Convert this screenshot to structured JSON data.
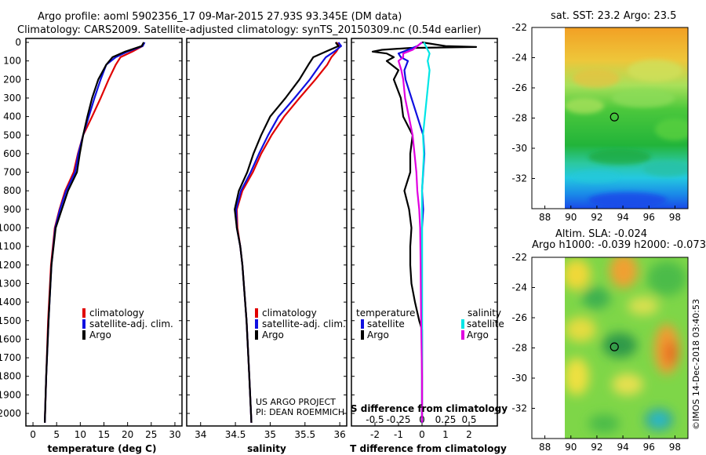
{
  "header": {
    "line1": "Argo profile: aoml 5902356_17 09-Mar-2015 27.93S 93.345E (DM data)",
    "line2": "Climatology: CARS2009. Satellite-adjusted climatology: synTS_20150309.nc (0.54d earlier)"
  },
  "credit": {
    "project": "US ARGO PROJECT",
    "pi": "PI: DEAN ROEMMICH",
    "imos": "©IMOS 14-Dec-2018 03:40:53"
  },
  "colors": {
    "climatology": "#e00000",
    "satellite": "#1010e0",
    "argo": "#000000",
    "sal_satellite": "#00e6e6",
    "sal_climatology": "#e000e0"
  },
  "legend": {
    "climatology": "climatology",
    "satellite_adj": "satellite-adj. clim.",
    "argo": "Argo",
    "temperature": "temperature",
    "salinity": "salinity",
    "satellite": "satellite"
  },
  "chart_data": [
    {
      "type": "line",
      "id": "temperature",
      "xlabel": "temperature (deg C)",
      "xlim": [
        -1.5,
        31.5
      ],
      "xticks": [
        0,
        5,
        10,
        15,
        20,
        25,
        30
      ],
      "ylim": [
        0,
        2050
      ],
      "yticks": [
        0,
        100,
        200,
        300,
        400,
        500,
        600,
        700,
        800,
        900,
        1000,
        1100,
        1200,
        1300,
        1400,
        1500,
        1600,
        1700,
        1800,
        1900,
        2000
      ],
      "series": [
        {
          "name": "climatology",
          "depth": [
            0,
            20,
            50,
            80,
            120,
            200,
            300,
            400,
            500,
            600,
            700,
            800,
            900,
            1000,
            1200,
            1500,
            1800,
            2050
          ],
          "values": [
            23.4,
            23.2,
            21,
            18.5,
            17.5,
            16,
            14.3,
            12.5,
            10.6,
            9.5,
            8.6,
            6.8,
            5.6,
            4.6,
            3.8,
            3.2,
            2.8,
            2.5
          ]
        },
        {
          "name": "satellite-adj. clim.",
          "depth": [
            0,
            20,
            50,
            80,
            120,
            200,
            300,
            400,
            500,
            600,
            700,
            800,
            900,
            1000,
            1200,
            1500,
            1800,
            2050
          ],
          "values": [
            23.6,
            23.2,
            20,
            17.5,
            15.5,
            14.3,
            13,
            11.8,
            10.6,
            9.6,
            8.9,
            7,
            5.7,
            4.7,
            3.9,
            3.3,
            2.8,
            2.5
          ]
        },
        {
          "name": "Argo",
          "depth": [
            0,
            20,
            50,
            80,
            120,
            200,
            300,
            400,
            500,
            600,
            700,
            800,
            900,
            1000,
            1200,
            1500,
            1800,
            2050
          ],
          "values": [
            23.4,
            23,
            19.5,
            16.8,
            15.5,
            13.8,
            12.5,
            11.5,
            10.6,
            9.9,
            9.3,
            7.4,
            6.1,
            4.8,
            3.9,
            3.3,
            2.8,
            2.5
          ]
        }
      ]
    },
    {
      "type": "line",
      "id": "salinity",
      "xlabel": "salinity",
      "xlim": [
        33.8,
        36.1
      ],
      "xticks": [
        34,
        34.5,
        35,
        35.5,
        36
      ],
      "xticklabels": [
        "34",
        "34.5",
        "35",
        "35.5",
        "36"
      ],
      "ylim": [
        0,
        2050
      ],
      "series": [
        {
          "name": "climatology",
          "depth": [
            0,
            20,
            50,
            80,
            120,
            200,
            300,
            400,
            500,
            600,
            700,
            800,
            900,
            1000,
            1100,
            1200,
            1500,
            1800,
            2050
          ],
          "values": [
            35.95,
            36.0,
            35.95,
            35.88,
            35.82,
            35.65,
            35.42,
            35.2,
            35.02,
            34.87,
            34.75,
            34.6,
            34.52,
            34.53,
            34.57,
            34.6,
            34.66,
            34.7,
            34.73
          ]
        },
        {
          "name": "satellite-adj. clim.",
          "depth": [
            0,
            20,
            50,
            80,
            120,
            200,
            300,
            400,
            500,
            600,
            700,
            800,
            900,
            1000,
            1100,
            1200,
            1500,
            1800,
            2050
          ],
          "values": [
            35.98,
            36.02,
            35.92,
            35.8,
            35.72,
            35.57,
            35.35,
            35.12,
            34.97,
            34.84,
            34.72,
            34.58,
            34.51,
            34.52,
            34.57,
            34.6,
            34.66,
            34.7,
            34.73
          ]
        },
        {
          "name": "Argo",
          "depth": [
            0,
            20,
            50,
            80,
            120,
            200,
            300,
            400,
            500,
            600,
            700,
            800,
            900,
            1000,
            1100,
            1200,
            1500,
            1800,
            2050
          ],
          "values": [
            35.94,
            35.98,
            35.8,
            35.62,
            35.55,
            35.42,
            35.22,
            35.0,
            34.87,
            34.76,
            34.67,
            34.55,
            34.49,
            34.52,
            34.57,
            34.6,
            34.66,
            34.7,
            34.73
          ]
        }
      ]
    },
    {
      "type": "line",
      "id": "difference",
      "xlabel": "T difference from climatology",
      "xlabel_top": "S difference from climatology",
      "xlim": [
        -3,
        3.2
      ],
      "xticks": [
        -2,
        -1,
        0,
        1,
        2
      ],
      "s_xticks": [
        -0.5,
        -0.25,
        0,
        0.25,
        0.5
      ],
      "s_xticklabels": [
        "-0.5",
        "-0.25",
        "0",
        "0.25",
        "0.5"
      ],
      "ylim": [
        0,
        2050
      ],
      "series": [
        {
          "name": "temperature Argo",
          "axis": "T",
          "depth": [
            0,
            20,
            25,
            30,
            40,
            50,
            60,
            80,
            100,
            150,
            200,
            300,
            400,
            500,
            600,
            700,
            800,
            900,
            1000,
            1100,
            1200,
            1300,
            1400,
            1500,
            1550,
            1600,
            1800,
            2050
          ],
          "values": [
            0,
            1,
            2.3,
            -0.5,
            -1.7,
            -2.1,
            -1.5,
            -1.2,
            -1.5,
            -1.0,
            -1.2,
            -0.9,
            -0.8,
            -0.4,
            -0.5,
            -0.5,
            -0.75,
            -0.55,
            -0.45,
            -0.5,
            -0.5,
            -0.45,
            -0.3,
            -0.12,
            0,
            0,
            0,
            0
          ]
        },
        {
          "name": "temperature satellite",
          "axis": "T",
          "depth": [
            0,
            20,
            40,
            60,
            80,
            100,
            150,
            200,
            300,
            400,
            500,
            600,
            700,
            800,
            900,
            1000,
            1200,
            1500,
            1800,
            2050
          ],
          "values": [
            0,
            -0.2,
            -0.6,
            -1.0,
            -0.9,
            -0.6,
            -0.75,
            -0.7,
            -0.45,
            -0.2,
            0.05,
            0.1,
            0.05,
            0,
            0.05,
            0,
            0,
            0,
            0,
            0
          ]
        },
        {
          "name": "salinity satellite",
          "axis": "S",
          "depth": [
            0,
            20,
            40,
            60,
            80,
            100,
            150,
            200,
            300,
            400,
            500,
            600,
            700,
            800,
            900,
            1000,
            1200,
            1500,
            1800,
            2050
          ],
          "values": [
            0.02,
            0.04,
            0.06,
            0.08,
            0.07,
            0.06,
            0.08,
            0.07,
            0.05,
            0.03,
            0.01,
            0.02,
            0.01,
            0,
            0,
            0,
            0,
            0,
            0,
            0
          ]
        },
        {
          "name": "salinity Argo",
          "axis": "S",
          "depth": [
            0,
            20,
            40,
            60,
            80,
            100,
            150,
            200,
            300,
            400,
            500,
            600,
            700,
            800,
            900,
            1000,
            1200,
            1500,
            1800,
            2050
          ],
          "values": [
            0,
            -0.05,
            -0.1,
            -0.2,
            -0.2,
            -0.25,
            -0.22,
            -0.2,
            -0.18,
            -0.14,
            -0.1,
            -0.08,
            -0.06,
            -0.05,
            -0.03,
            -0.02,
            -0.015,
            -0.01,
            0,
            0
          ]
        }
      ]
    },
    {
      "type": "heatmap",
      "id": "sst_map",
      "title": "sat. SST: 23.2  Argo: 23.5",
      "xlim": [
        87,
        99
      ],
      "ylim": [
        -34,
        -22
      ],
      "xticks": [
        88,
        90,
        92,
        94,
        96,
        98
      ],
      "yticks": [
        -22,
        -24,
        -26,
        -28,
        -30,
        -32
      ],
      "land_east_of": 90,
      "profile_position": [
        93.345,
        -27.93
      ]
    },
    {
      "type": "heatmap",
      "id": "sla_map",
      "title": "Altim. SLA: -0.024",
      "subtitle": "Argo h1000: -0.039  h2000: -0.073",
      "xlim": [
        87,
        99
      ],
      "ylim": [
        -34,
        -22
      ],
      "xticks": [
        88,
        90,
        92,
        94,
        96,
        98
      ],
      "yticks": [
        -22,
        -24,
        -26,
        -28,
        -30,
        -32
      ],
      "land_east_of": 90,
      "profile_position": [
        93.345,
        -27.93
      ]
    }
  ]
}
